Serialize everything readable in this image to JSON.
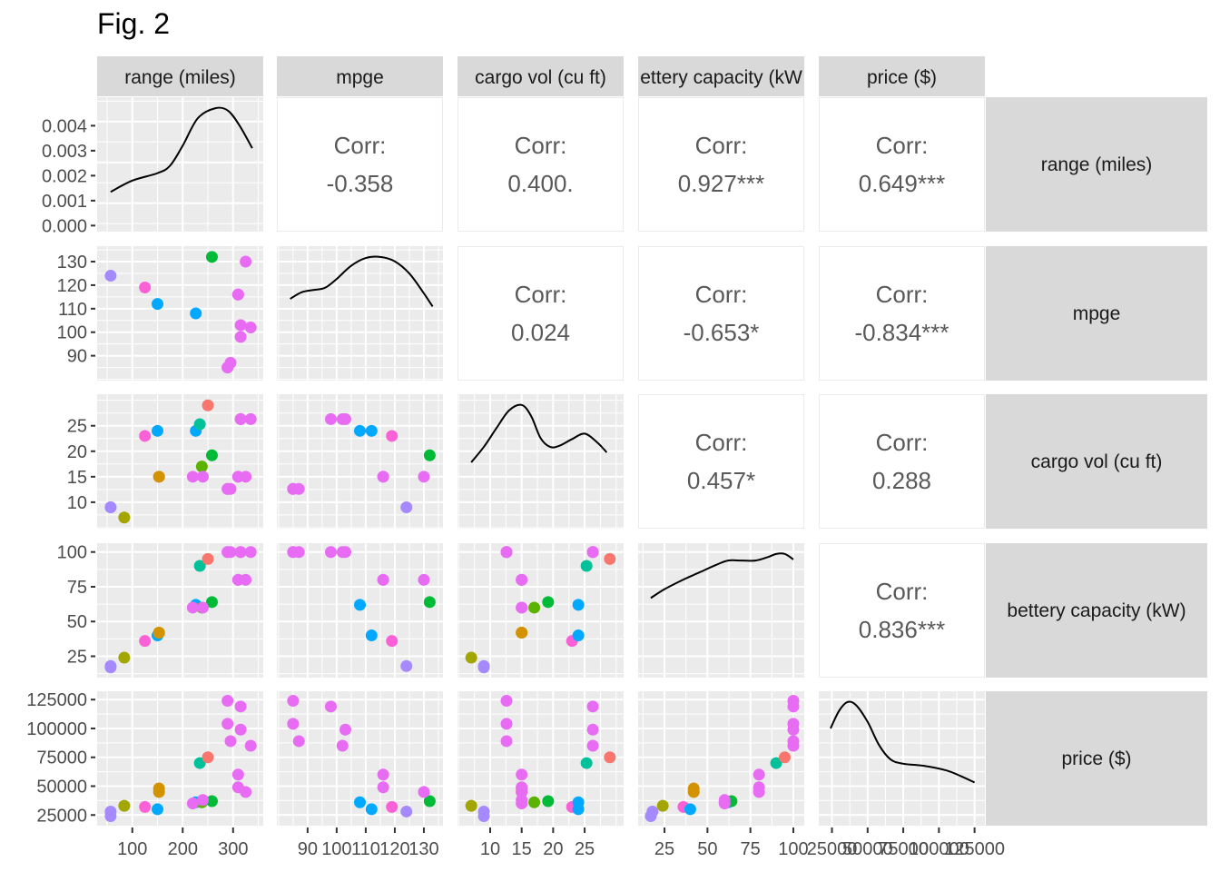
{
  "figure": {
    "title": "Fig. 2"
  },
  "chart_data": {
    "type": "scatter",
    "title": "Fig. 2",
    "kind": "pairs-plot (scatterplot matrix)",
    "variables": [
      "range (miles)",
      "mpge",
      "cargo vol (cu ft)",
      "bettery capacity (kW)",
      "price ($)"
    ],
    "column_strip_labels": [
      "range (miles)",
      "mpge",
      "cargo vol (cu ft)",
      "ettery capacity (kW",
      "price ($)"
    ],
    "row_strip_labels": [
      "range (miles)",
      "mpge",
      "cargo vol (cu ft)",
      "bettery capacity (kW)",
      "price ($)"
    ],
    "axes": {
      "range (miles)": {
        "lim": [
          45,
          345
        ],
        "ticks": [
          100,
          200,
          300
        ]
      },
      "mpge": {
        "lim": [
          82,
          134
        ],
        "ticks": [
          90,
          100,
          110,
          120,
          130
        ]
      },
      "cargo vol (cu ft)": {
        "lim": [
          6,
          30
        ],
        "ticks": [
          10,
          15,
          20,
          25
        ]
      },
      "bettery capacity (kW)": {
        "lim": [
          14,
          102
        ],
        "ticks": [
          25,
          50,
          75,
          100
        ]
      },
      "price ($)": {
        "lim": [
          21000,
          127000
        ],
        "ticks": [
          25000,
          50000,
          75000,
          100000,
          125000
        ]
      }
    },
    "density_axis": {
      "lim": [
        0,
        0.0049
      ],
      "ticks": [
        "0.000",
        "0.001",
        "0.002",
        "0.003",
        "0.004"
      ]
    },
    "correlations": [
      {
        "row": "range (miles)",
        "col": "mpge",
        "label": "Corr:",
        "value": "-0.358"
      },
      {
        "row": "range (miles)",
        "col": "cargo vol (cu ft)",
        "label": "Corr:",
        "value": "0.400."
      },
      {
        "row": "range (miles)",
        "col": "bettery capacity (kW)",
        "label": "Corr:",
        "value": "0.927***"
      },
      {
        "row": "range (miles)",
        "col": "price ($)",
        "label": "Corr:",
        "value": "0.649***"
      },
      {
        "row": "mpge",
        "col": "cargo vol (cu ft)",
        "label": "Corr:",
        "value": "0.024"
      },
      {
        "row": "mpge",
        "col": "bettery capacity (kW)",
        "label": "Corr:",
        "value": "-0.653*"
      },
      {
        "row": "mpge",
        "col": "price ($)",
        "label": "Corr:",
        "value": "-0.834***"
      },
      {
        "row": "cargo vol (cu ft)",
        "col": "bettery capacity (kW)",
        "label": "Corr:",
        "value": "0.457*"
      },
      {
        "row": "cargo vol (cu ft)",
        "col": "price ($)",
        "label": "Corr:",
        "value": "0.288"
      },
      {
        "row": "bettery capacity (kW)",
        "col": "price ($)",
        "label": "Corr:",
        "value": "0.836***"
      }
    ],
    "densities": {
      "range (miles)": {
        "x": [
          57,
          100,
          150,
          175,
          200,
          230,
          265,
          290,
          313,
          338
        ],
        "y": [
          0.00135,
          0.0018,
          0.0021,
          0.0024,
          0.0032,
          0.0043,
          0.0047,
          0.0046,
          0.004,
          0.0031
        ]
      },
      "mpge": {
        "x": [
          84,
          88,
          92,
          96,
          100,
          105,
          110,
          115,
          120,
          125,
          130,
          133
        ],
        "y": [
          0.62,
          0.68,
          0.7,
          0.72,
          0.8,
          0.92,
          0.99,
          1.0,
          0.96,
          0.85,
          0.67,
          0.55
        ]
      },
      "cargo vol (cu ft)": {
        "x": [
          7,
          9,
          11,
          13,
          15,
          16.5,
          18,
          19.5,
          21,
          23,
          25,
          27,
          28.5
        ],
        "y": [
          0.48,
          0.62,
          0.79,
          0.95,
          1.0,
          0.9,
          0.7,
          0.62,
          0.63,
          0.69,
          0.74,
          0.66,
          0.57
        ]
      },
      "bettery capacity (kW)": {
        "x": [
          17,
          25,
          35,
          45,
          55,
          62,
          70,
          78,
          85,
          90,
          95,
          100
        ],
        "y": [
          0.6,
          0.68,
          0.76,
          0.83,
          0.9,
          0.94,
          0.94,
          0.94,
          0.97,
          1.0,
          1.0,
          0.95
        ]
      },
      "price ($)": {
        "x": [
          24000,
          30000,
          36000,
          42000,
          50000,
          58000,
          66000,
          75000,
          90000,
          105000,
          115000,
          125000
        ],
        "y": [
          0.76,
          0.92,
          1.0,
          0.97,
          0.82,
          0.61,
          0.48,
          0.44,
          0.42,
          0.38,
          0.33,
          0.27
        ]
      }
    },
    "points": [
      {
        "range": 57,
        "mpge": 124,
        "cargo": 9,
        "battery": 18,
        "price": 28000,
        "color": "#A58AFF"
      },
      {
        "range": 57,
        "mpge": null,
        "cargo": 9,
        "battery": 17,
        "price": 24000,
        "color": "#A58AFF"
      },
      {
        "range": 84,
        "mpge": null,
        "cargo": 7,
        "battery": 24,
        "price": 33000,
        "color": "#A3A500"
      },
      {
        "range": 125,
        "mpge": 119,
        "cargo": 23,
        "battery": 36,
        "price": 32000,
        "color": "#FB61D7"
      },
      {
        "range": 150,
        "mpge": 112,
        "cargo": 24,
        "battery": 40,
        "price": 30000,
        "color": "#00A9FF"
      },
      {
        "range": 153,
        "mpge": null,
        "cargo": 15,
        "battery": 42,
        "price": 45000,
        "color": "#D39200"
      },
      {
        "range": 153,
        "mpge": null,
        "cargo": 15,
        "battery": 42,
        "price": 48000,
        "color": "#D39200"
      },
      {
        "range": 226,
        "mpge": 108,
        "cargo": 24,
        "battery": 62,
        "price": 36000,
        "color": "#00A9FF"
      },
      {
        "range": 234,
        "mpge": null,
        "cargo": 25.3,
        "battery": 90,
        "price": 70000,
        "color": "#00C19A"
      },
      {
        "range": 238,
        "mpge": null,
        "cargo": 17,
        "battery": 60,
        "price": 36000,
        "color": "#5BB300"
      },
      {
        "range": 258,
        "mpge": 132,
        "cargo": 19.2,
        "battery": 64,
        "price": 37000,
        "color": "#00BA38"
      },
      {
        "range": 250,
        "mpge": null,
        "cargo": 29,
        "battery": 95,
        "price": 75000,
        "color": "#F8766D"
      },
      {
        "range": 220,
        "mpge": null,
        "cargo": 15,
        "battery": 60,
        "price": 35000,
        "color": "#E76BF3"
      },
      {
        "range": 240,
        "mpge": null,
        "cargo": 15,
        "battery": 60,
        "price": 38000,
        "color": "#E76BF3"
      },
      {
        "range": 289,
        "mpge": 85,
        "cargo": 12.6,
        "battery": 100,
        "price": 124000,
        "color": "#E76BF3"
      },
      {
        "range": 289,
        "mpge": 85,
        "cargo": 12.6,
        "battery": 100,
        "price": 104000,
        "color": "#E76BF3"
      },
      {
        "range": 295,
        "mpge": 87,
        "cargo": 12.6,
        "battery": 100,
        "price": 89000,
        "color": "#E76BF3"
      },
      {
        "range": 310,
        "mpge": 116,
        "cargo": 15,
        "battery": 80,
        "price": 60000,
        "color": "#E76BF3"
      },
      {
        "range": 310,
        "mpge": 116,
        "cargo": 15,
        "battery": 80,
        "price": 49000,
        "color": "#E76BF3"
      },
      {
        "range": 315,
        "mpge": 98,
        "cargo": 26.3,
        "battery": 100,
        "price": 119000,
        "color": "#E76BF3"
      },
      {
        "range": 315,
        "mpge": 103,
        "cargo": 26.3,
        "battery": 100,
        "price": 99000,
        "color": "#E76BF3"
      },
      {
        "range": 325,
        "mpge": 130,
        "cargo": 15,
        "battery": 80,
        "price": 45000,
        "color": "#E76BF3"
      },
      {
        "range": 335,
        "mpge": 102,
        "cargo": 26.3,
        "battery": 100,
        "price": 85000,
        "color": "#E76BF3"
      }
    ],
    "grid": true
  }
}
